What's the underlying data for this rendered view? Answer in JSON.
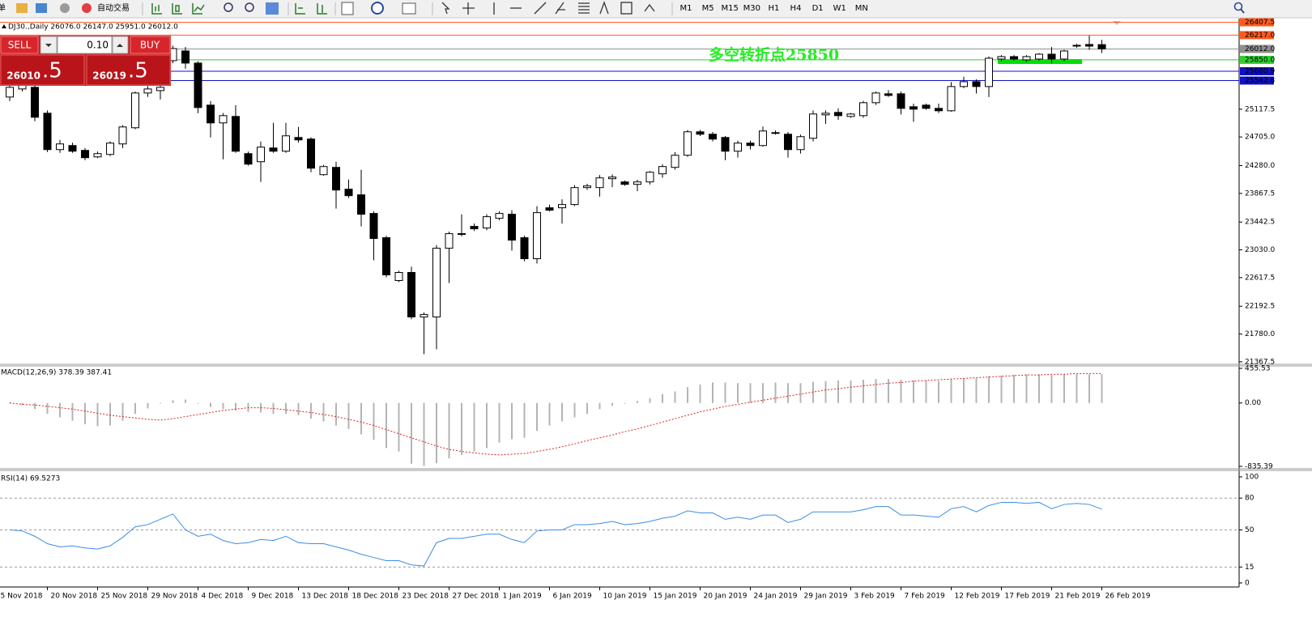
{
  "toolbar": {
    "menu": "单",
    "auto_trading": "自动交易",
    "timeframes": [
      "M1",
      "M5",
      "M15",
      "M30",
      "H1",
      "H4",
      "D1",
      "W1",
      "MN"
    ]
  },
  "trade_panel": {
    "sell": "SELL",
    "lot": "0.10",
    "buy": "BUY",
    "bid": "26010",
    "bid_pips": ".5",
    "ask": "26019",
    "ask_pips": ".5"
  },
  "chart_data": [
    {
      "type": "candlestick",
      "title": "DJ30.,Daily  26076.0 26147.0 25951.0 26012.0",
      "annotation": "多空转折点25850",
      "open": [
        25298,
        25418,
        25442,
        25058,
        24518,
        24578,
        24506,
        24410,
        24446,
        24602,
        24842,
        25358,
        25394,
        25838,
        25982,
        25802,
        25178,
        24914,
        25010,
        24458,
        24338,
        24542,
        24494,
        24698,
        24674,
        24146,
        24254,
        23930,
        23846,
        23570,
        23210,
        22574,
        22694,
        22034,
        22034,
        23054,
        23258,
        23378,
        23354,
        23498,
        23558,
        23210,
        22898,
        23654,
        23654,
        23702,
        23954,
        23954,
        24086,
        24038,
        24002,
        24038,
        24158,
        24254,
        24434,
        24782,
        24746,
        24698,
        24494,
        24614,
        24578,
        24770,
        24746,
        24518,
        24686,
        25034,
        25070,
        25010,
        25022,
        25214,
        25346,
        25346,
        25154,
        25178,
        25130,
        25094,
        25454,
        25526,
        25454,
        25862,
        25898,
        25850,
        25862,
        25934,
        25862,
        26066,
        26078,
        26076
      ],
      "high": [
        25538,
        25520,
        25538,
        25100,
        24660,
        24620,
        24540,
        24490,
        24640,
        24880,
        25380,
        25460,
        25682,
        26060,
        26042,
        25830,
        25238,
        25060,
        25178,
        24490,
        24638,
        24914,
        24914,
        24854,
        24700,
        24290,
        24338,
        24074,
        24218,
        23600,
        23240,
        22720,
        22780,
        22100,
        23100,
        23300,
        23558,
        23420,
        23560,
        23600,
        23618,
        23240,
        23678,
        23700,
        23780,
        23990,
        24010,
        24140,
        24150,
        24060,
        24070,
        24200,
        24300,
        24480,
        24810,
        24810,
        24780,
        24720,
        24650,
        24650,
        24860,
        24800,
        24780,
        24740,
        25100,
        25100,
        25130,
        25060,
        25240,
        25380,
        25400,
        25380,
        25200,
        25200,
        25200,
        25520,
        25600,
        25560,
        25900,
        25920,
        25920,
        25920,
        25950,
        26040,
        26000,
        26090,
        26210,
        26147
      ],
      "low": [
        25238,
        25380,
        24938,
        24482,
        24470,
        24470,
        24360,
        24390,
        24420,
        24540,
        24820,
        25300,
        25262,
        25800,
        25718,
        25058,
        24698,
        24374,
        24470,
        24280,
        24038,
        24470,
        24470,
        24620,
        24182,
        24130,
        23642,
        23800,
        23378,
        22874,
        22620,
        22550,
        22000,
        21482,
        21554,
        22538,
        23230,
        23310,
        23320,
        23470,
        23018,
        22860,
        22826,
        23600,
        23420,
        23680,
        23920,
        23820,
        23960,
        23980,
        23900,
        24000,
        24100,
        24220,
        24410,
        24720,
        24640,
        24360,
        24400,
        24520,
        24560,
        24740,
        24400,
        24460,
        24640,
        24900,
        24960,
        24990,
        24990,
        25180,
        25300,
        25040,
        24930,
        25110,
        25060,
        25080,
        25430,
        25350,
        25298,
        25830,
        25840,
        25820,
        25840,
        25800,
        25830,
        26030,
        26000,
        25951
      ],
      "close": [
        25442,
        25478,
        24998,
        24518,
        24602,
        24494,
        24398,
        24458,
        24614,
        24854,
        25358,
        25418,
        25442,
        26018,
        25802,
        25142,
        24914,
        25022,
        24494,
        24302,
        24554,
        24494,
        24722,
        24662,
        24242,
        24266,
        23918,
        23834,
        23558,
        23198,
        22658,
        22694,
        22034,
        22070,
        23054,
        23270,
        23270,
        23342,
        23522,
        23570,
        23174,
        22898,
        23582,
        23618,
        23702,
        23954,
        23978,
        24098,
        24110,
        24002,
        24038,
        24182,
        24266,
        24434,
        24782,
        24746,
        24674,
        24494,
        24614,
        24578,
        24794,
        24758,
        24518,
        24710,
        25046,
        25058,
        25022,
        25046,
        25214,
        25358,
        25322,
        25130,
        25118,
        25130,
        25094,
        25454,
        25526,
        25454,
        25874,
        25898,
        25862,
        25898,
        25934,
        25862,
        25982,
        26054,
        26054,
        26012
      ],
      "x_labels": [
        "5 Nov 2018",
        "20 Nov 2018",
        "25 Nov 2018",
        "29 Nov 2018",
        "4 Dec 2018",
        "9 Dec 2018",
        "13 Dec 2018",
        "18 Dec 2018",
        "23 Dec 2018",
        "27 Dec 2018",
        "1 Jan 2019",
        "6 Jan 2019",
        "10 Jan 2019",
        "15 Jan 2019",
        "20 Jan 2019",
        "24 Jan 2019",
        "29 Jan 2019",
        "3 Feb 2019",
        "7 Feb 2019",
        "12 Feb 2019",
        "17 Feb 2019",
        "21 Feb 2019",
        "26 Feb 2019"
      ],
      "ylim": [
        21330,
        26450
      ],
      "yticks": [
        25117.5,
        {
          "value": 24705,
          "label": "24705.0"
        },
        {
          "value": 24280,
          "label": "24280.0"
        },
        23867.5,
        23442.5,
        {
          "value": 23030,
          "label": "23030.0"
        },
        22617.5,
        22192.5,
        {
          "value": 21780,
          "label": "21780.0"
        },
        21367.5
      ],
      "levels": [
        {
          "value": 26407.5,
          "color": "#ff5a1f"
        },
        {
          "value": 26217,
          "label": "26217.0",
          "color": "#ff5a1f"
        },
        {
          "value": 26012,
          "label": "26012.0",
          "color": "#909090"
        },
        {
          "value": 25850,
          "label": "25850.0",
          "color": "#33cc33"
        },
        {
          "value": 25680.9,
          "color": "#1010c8"
        },
        {
          "value": 25542.8,
          "color": "#1010c8"
        }
      ],
      "up_color": "#ffffff",
      "down_color": "#000000"
    },
    {
      "type": "macd",
      "title": "MACD(12,26,9) 378.39 387.41",
      "histogram": [
        9,
        -27,
        -81,
        -144,
        -190,
        -234,
        -280,
        -306,
        -297,
        -234,
        -144,
        -72,
        -9,
        36,
        45,
        -9,
        -54,
        -81,
        -99,
        -117,
        -126,
        -144,
        -144,
        -162,
        -207,
        -243,
        -297,
        -342,
        -414,
        -486,
        -594,
        -639,
        -801,
        -830,
        -792,
        -729,
        -684,
        -639,
        -594,
        -522,
        -477,
        -459,
        -369,
        -297,
        -243,
        -189,
        -144,
        -81,
        -36,
        -9,
        27,
        63,
        117,
        153,
        207,
        243,
        270,
        270,
        261,
        261,
        261,
        270,
        261,
        261,
        279,
        288,
        297,
        297,
        306,
        315,
        315,
        306,
        297,
        297,
        288,
        315,
        324,
        324,
        351,
        360,
        369,
        378,
        378,
        369,
        378,
        378,
        378,
        378.39
      ],
      "signal": [
        0,
        -18,
        -27,
        -45,
        -63,
        -81,
        -108,
        -135,
        -162,
        -180,
        -198,
        -216,
        -225,
        -207,
        -180,
        -153,
        -126,
        -99,
        -81,
        -63,
        -63,
        -72,
        -90,
        -108,
        -126,
        -153,
        -180,
        -216,
        -252,
        -297,
        -351,
        -405,
        -459,
        -513,
        -567,
        -612,
        -639,
        -657,
        -675,
        -684,
        -675,
        -666,
        -639,
        -612,
        -576,
        -540,
        -495,
        -459,
        -423,
        -378,
        -342,
        -297,
        -252,
        -207,
        -162,
        -117,
        -81,
        -45,
        -18,
        9,
        36,
        63,
        90,
        117,
        144,
        171,
        189,
        207,
        225,
        243,
        261,
        270,
        288,
        297,
        306,
        315,
        324,
        333,
        342,
        351,
        360,
        369,
        369,
        378,
        378,
        387,
        387,
        387.41
      ],
      "histogram_color": "#b4b4b4",
      "signal_color": "#e02020",
      "ylim": [
        -835.39,
        455.53
      ],
      "yticks": [
        455.53,
        {
          "value": 0,
          "label": "0.00"
        },
        -835.39
      ]
    },
    {
      "type": "rsi",
      "title": "RSI(14) 69.5273",
      "values": [
        50,
        49,
        44,
        37,
        34,
        35,
        33,
        32,
        35,
        43,
        53,
        55,
        60,
        65,
        50,
        44,
        46,
        40,
        37,
        38,
        41,
        40,
        44,
        38,
        37,
        37,
        34,
        31,
        27,
        24,
        21,
        21,
        17,
        16,
        38,
        42,
        42,
        44,
        46,
        46,
        41,
        38,
        49,
        50,
        50,
        55,
        55,
        56,
        58,
        55,
        56,
        58,
        61,
        63,
        68,
        66,
        66,
        60,
        62,
        60,
        64,
        64,
        57,
        60,
        67,
        67,
        67,
        67,
        69,
        72,
        72,
        64,
        64,
        63,
        62,
        70,
        72,
        67,
        73,
        76,
        76,
        75,
        76,
        70,
        74,
        75,
        74,
        69.5273
      ],
      "color": "#3c8ce6",
      "ylim": [
        0,
        100
      ],
      "yticks": [
        100,
        80,
        50,
        15,
        0
      ]
    }
  ]
}
